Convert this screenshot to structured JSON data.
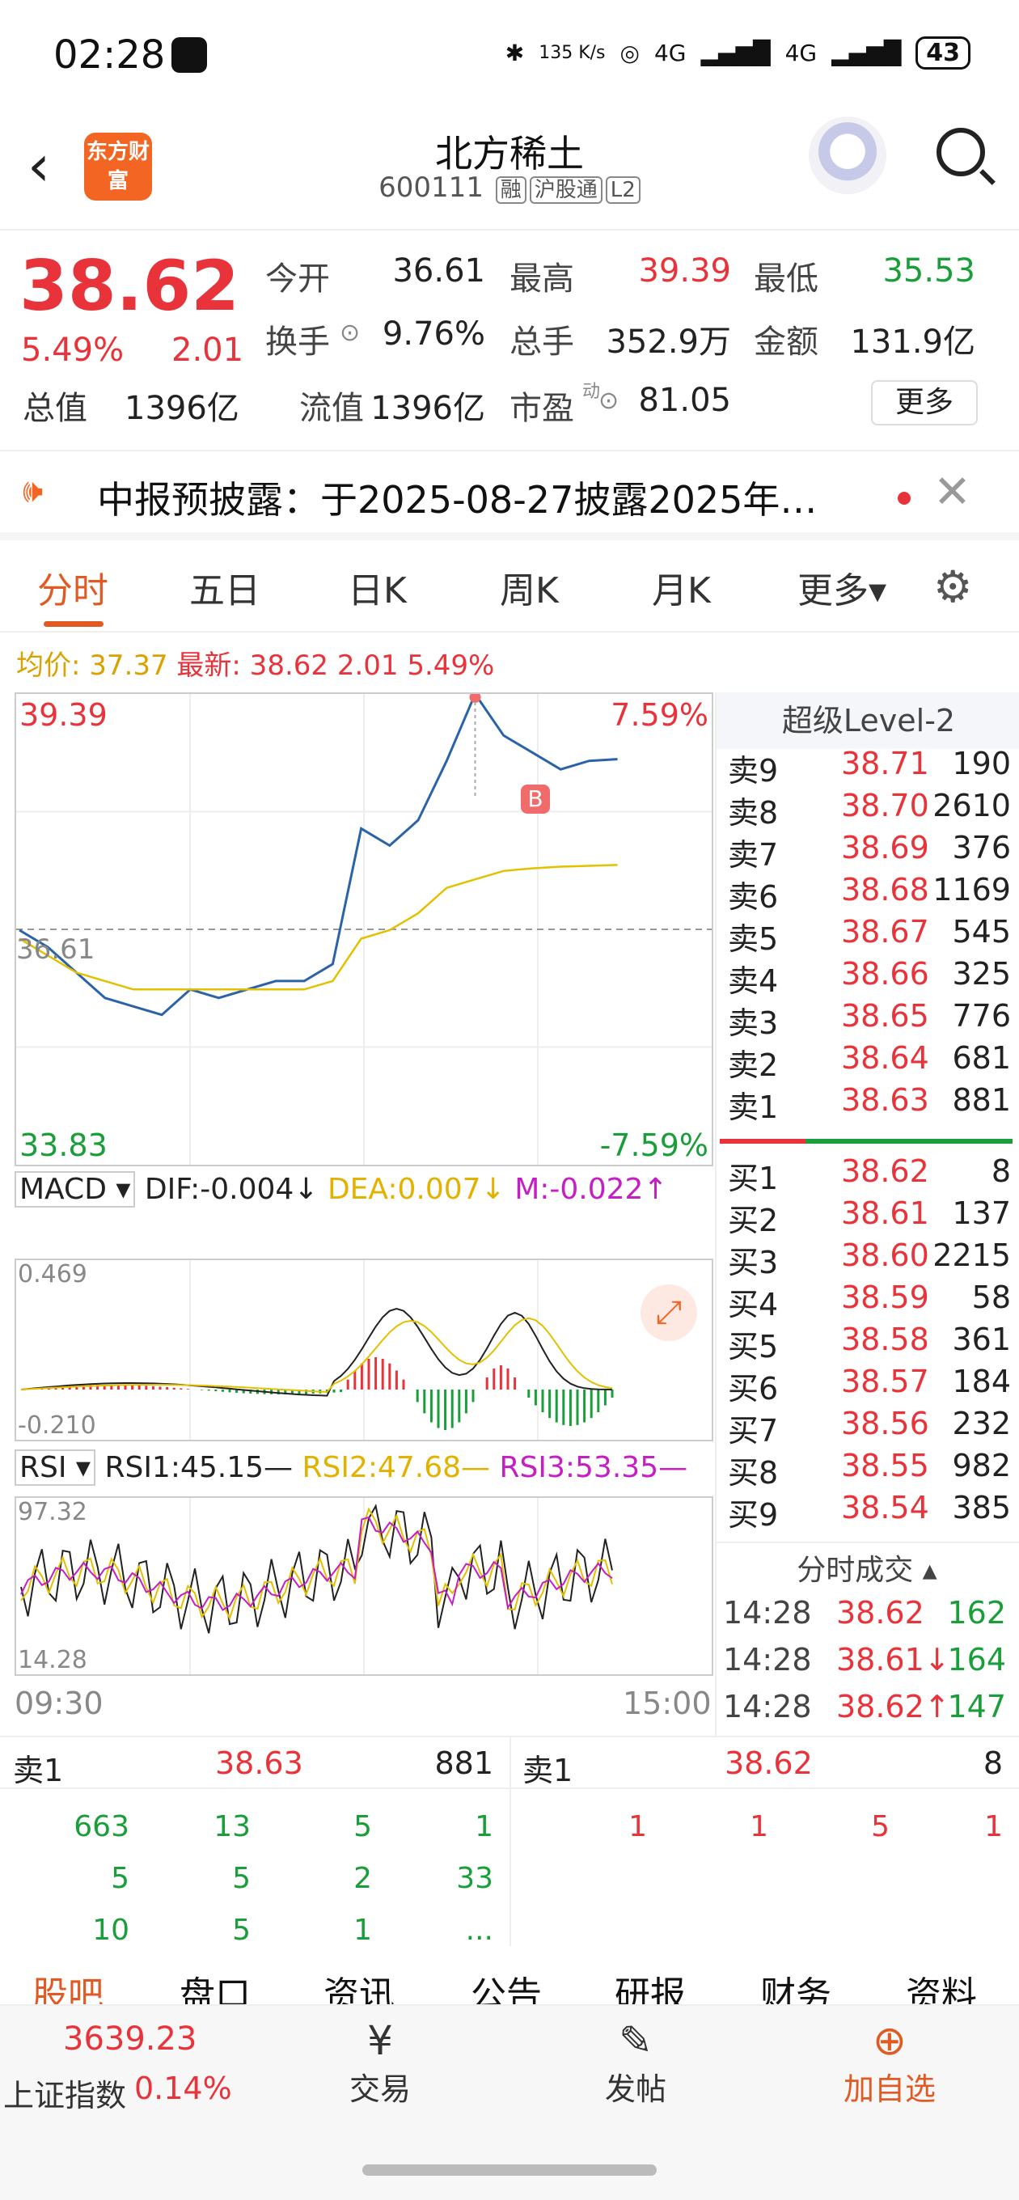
{
  "status": {
    "time": "02:28",
    "net_speed": "135 K/s",
    "signal1": "4G",
    "signal2": "4G",
    "battery": "43"
  },
  "header": {
    "name": "北方稀土",
    "code": "600111",
    "tags": [
      "融",
      "沪股通",
      "L2"
    ],
    "logo_text": "东方财富"
  },
  "quote": {
    "price": "38.62",
    "pct": "5.49%",
    "chg": "2.01",
    "open_label": "今开",
    "open": "36.61",
    "high_label": "最高",
    "high": "39.39",
    "low_label": "最低",
    "low": "35.53",
    "turnover_label": "换手",
    "turnover": "9.76%",
    "volume_label": "总手",
    "volume": "352.9万",
    "amount_label": "金额",
    "amount": "131.9亿",
    "total_value_label": "总值",
    "total_value": "1396亿",
    "float_label": "流值",
    "float_value": "1396亿",
    "pe_label": "市盈",
    "pe_sup": "动",
    "pe": "81.05",
    "more": "更多"
  },
  "notice": {
    "text": "中报预披露：于2025-08-27披露2025年…"
  },
  "tabs": [
    "分时",
    "五日",
    "日K",
    "周K",
    "月K",
    "更多▾"
  ],
  "info": {
    "avg": "均价: 37.37",
    "latest": "最新: 38.62 2.01 5.49%"
  },
  "chart": {
    "top_price": "39.39",
    "top_pct": "7.59%",
    "bottom_price": "33.83",
    "bottom_pct": "-7.59%",
    "ref_price": "36.61",
    "start_time": "09:30",
    "end_time": "15:00",
    "marker": "B",
    "macd_label": "MACD ▾",
    "dif": "DIF:-0.004↓",
    "dea": "DEA:0.007↓",
    "m": "M:-0.022↑",
    "macd_top": "0.469",
    "macd_bottom": "-0.210",
    "rsi_label": "RSI ▾",
    "rsi1": "RSI1:45.15—",
    "rsi2": "RSI2:47.68—",
    "rsi3": "RSI3:53.35—",
    "rsi_top": "97.32",
    "rsi_bottom": "14.28"
  },
  "chart_data": {
    "type": "line",
    "title": "",
    "series": [
      {
        "name": "",
        "values": [
          36.6,
          36.4,
          36.1,
          35.8,
          35.7,
          35.6,
          35.9,
          35.8,
          35.9,
          36.0,
          36.0,
          36.2,
          37.8,
          37.6,
          37.9,
          38.6,
          39.39,
          38.9,
          38.7,
          38.5,
          38.6,
          38.62
        ]
      },
      {
        "name": "均价",
        "values": [
          36.5,
          36.3,
          36.1,
          36.0,
          35.9,
          35.9,
          35.9,
          35.9,
          35.9,
          35.9,
          35.9,
          36.0,
          36.5,
          36.6,
          36.8,
          37.1,
          37.2,
          37.3,
          37.33,
          37.35,
          37.36,
          37.37
        ]
      }
    ],
    "ylim": [
      33.83,
      39.39
    ],
    "x_labels": [
      "09:30",
      "15:00"
    ]
  },
  "level2": {
    "title": "超级Level-2",
    "asks": [
      {
        "n": "卖9",
        "p": "38.71",
        "v": "190"
      },
      {
        "n": "卖8",
        "p": "38.70",
        "v": "2610"
      },
      {
        "n": "卖7",
        "p": "38.69",
        "v": "376"
      },
      {
        "n": "卖6",
        "p": "38.68",
        "v": "1169"
      },
      {
        "n": "卖5",
        "p": "38.67",
        "v": "545"
      },
      {
        "n": "卖4",
        "p": "38.66",
        "v": "325"
      },
      {
        "n": "卖3",
        "p": "38.65",
        "v": "776"
      },
      {
        "n": "卖2",
        "p": "38.64",
        "v": "681"
      },
      {
        "n": "卖1",
        "p": "38.63",
        "v": "881"
      }
    ],
    "bids": [
      {
        "n": "买1",
        "p": "38.62",
        "v": "8"
      },
      {
        "n": "买2",
        "p": "38.61",
        "v": "137"
      },
      {
        "n": "买3",
        "p": "38.60",
        "v": "2215"
      },
      {
        "n": "买4",
        "p": "38.59",
        "v": "58"
      },
      {
        "n": "买5",
        "p": "38.58",
        "v": "361"
      },
      {
        "n": "买6",
        "p": "38.57",
        "v": "184"
      },
      {
        "n": "买7",
        "p": "38.56",
        "v": "232"
      },
      {
        "n": "买8",
        "p": "38.55",
        "v": "982"
      },
      {
        "n": "买9",
        "p": "38.54",
        "v": "385"
      }
    ],
    "trades_title": "分时成交 ▴",
    "trades": [
      {
        "t": "14:28",
        "p": "38.62",
        "v": "162"
      },
      {
        "t": "14:28",
        "p": "38.61↓",
        "v": "164"
      },
      {
        "t": "14:28",
        "p": "38.62↑",
        "v": "147"
      }
    ]
  },
  "detail": {
    "ask_label": "卖1",
    "ask_price": "38.63",
    "ask_vol": "881",
    "bid_label": "卖1",
    "bid_price": "38.62",
    "bid_vol": "8",
    "left_rows": [
      [
        "663",
        "13",
        "5",
        "1"
      ],
      [
        "5",
        "5",
        "2",
        "33"
      ],
      [
        "10",
        "5",
        "1",
        "..."
      ]
    ],
    "right_rows": [
      [
        "1",
        "1",
        "5",
        "1"
      ]
    ]
  },
  "subtabs": [
    "股吧",
    "盘口",
    "资讯",
    "公告",
    "研报",
    "财务",
    "资料"
  ],
  "bottom": {
    "index_value": "3639.23",
    "index_name": "上证指数",
    "index_pct": "0.14%",
    "trade": "交易",
    "post": "发帖",
    "watch": "加自选"
  }
}
